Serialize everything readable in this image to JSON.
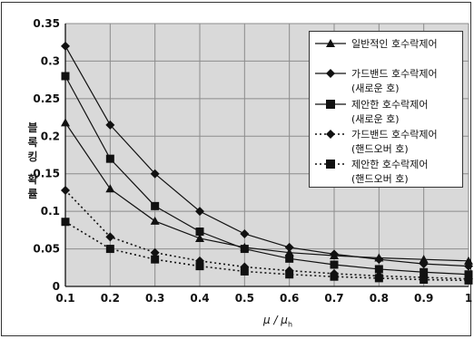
{
  "chart_data": {
    "type": "line",
    "title": "",
    "xlabel_main": "μ / μ",
    "xlabel_sub": "h",
    "ylabel_chars": [
      "블",
      "록",
      "킹",
      "확",
      "률"
    ],
    "x": [
      0.1,
      0.2,
      0.3,
      0.4,
      0.5,
      0.6,
      0.7,
      0.8,
      0.9,
      1
    ],
    "x_ticks": [
      "0.1",
      "0.2",
      "0.3",
      "0.4",
      "0.5",
      "0.6",
      "0.7",
      "0.8",
      "0.9",
      "1"
    ],
    "y_ticks": [
      "0",
      "0.05",
      "0.1",
      "0.15",
      "0.2",
      "0.25",
      "0.3",
      "0.35"
    ],
    "xlim": [
      0.1,
      1
    ],
    "ylim": [
      0,
      0.35
    ],
    "grid": true,
    "legend_position": "top-right",
    "series": [
      {
        "name": "일반적인 호수락제어",
        "name_line2": "",
        "marker": "triangle",
        "line": "solid",
        "values": [
          0.218,
          0.13,
          0.087,
          0.064,
          0.052,
          0.045,
          0.041,
          0.038,
          0.036,
          0.034
        ]
      },
      {
        "name": "가드밴드 호수락제어",
        "name_line2": "(새로운 호)",
        "marker": "diamond",
        "line": "solid",
        "values": [
          0.32,
          0.215,
          0.15,
          0.1,
          0.07,
          0.052,
          0.043,
          0.036,
          0.03,
          0.027
        ]
      },
      {
        "name": "제안한 호수락제어",
        "name_line2": "(새로운 호)",
        "marker": "square",
        "line": "solid",
        "values": [
          0.28,
          0.17,
          0.107,
          0.073,
          0.05,
          0.037,
          0.029,
          0.023,
          0.019,
          0.016
        ]
      },
      {
        "name": "가드밴드 호수락제어",
        "name_line2": "(핸드오버 호)",
        "marker": "diamond",
        "line": "dotted",
        "values": [
          0.128,
          0.066,
          0.045,
          0.034,
          0.026,
          0.021,
          0.017,
          0.014,
          0.012,
          0.01
        ]
      },
      {
        "name": "제안한 호수락제어",
        "name_line2": "(핸드오버 호)",
        "marker": "square",
        "line": "dotted",
        "values": [
          0.086,
          0.05,
          0.036,
          0.027,
          0.02,
          0.016,
          0.013,
          0.011,
          0.009,
          0.008
        ]
      }
    ]
  }
}
